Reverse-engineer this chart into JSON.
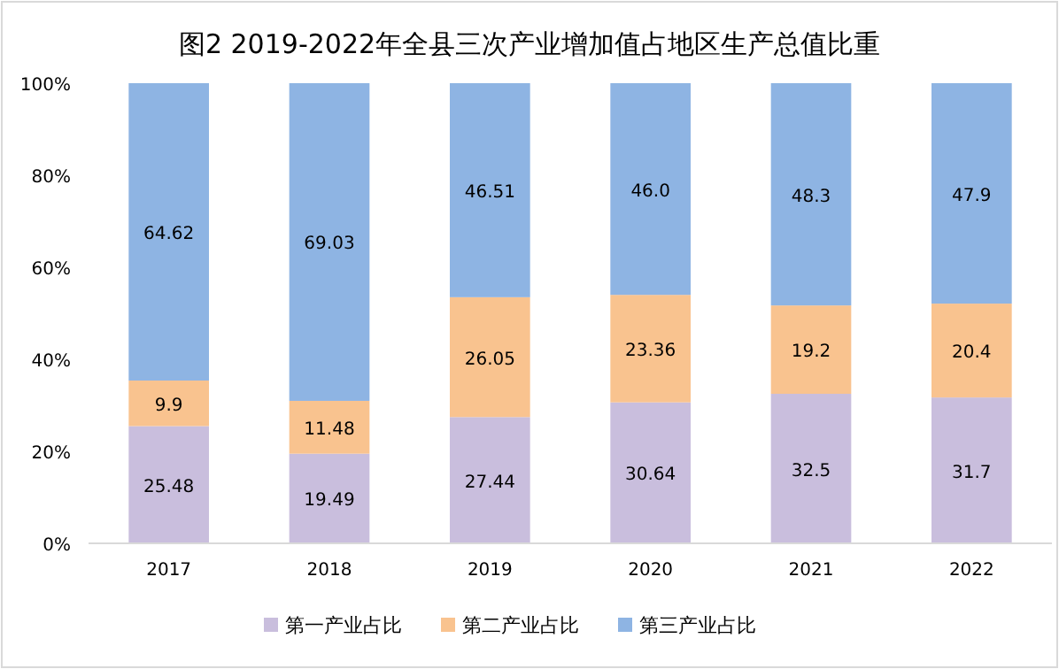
{
  "chart_data": {
    "type": "bar",
    "stacked": true,
    "title": "图2 2019-2022年全县三次产业增加值占地区生产总值比重",
    "categories": [
      "2017",
      "2018",
      "2019",
      "2020",
      "2021",
      "2022"
    ],
    "series": [
      {
        "name": "第一产业占比",
        "color": "#c9bedd",
        "values": [
          25.48,
          19.49,
          27.44,
          30.64,
          32.5,
          31.7
        ]
      },
      {
        "name": "第二产业占比",
        "color": "#f9c38f",
        "values": [
          9.9,
          11.48,
          26.05,
          23.36,
          19.2,
          20.4
        ]
      },
      {
        "name": "第三产业占比",
        "color": "#8eb4e3",
        "values": [
          64.62,
          69.03,
          46.51,
          46.0,
          48.3,
          47.9
        ]
      }
    ],
    "value_labels": [
      [
        "25.48",
        "19.49",
        "27.44",
        "30.64",
        "32.5",
        "31.7"
      ],
      [
        "9.9",
        "11.48",
        "26.05",
        "23.36",
        "19.2",
        "20.4"
      ],
      [
        "64.62",
        "69.03",
        "46.51",
        "46.0",
        "48.3",
        "47.9"
      ]
    ],
    "ylim": [
      0,
      100
    ],
    "yticks": [
      {
        "value": 0,
        "label": "0%"
      },
      {
        "value": 20,
        "label": "20%"
      },
      {
        "value": 40,
        "label": "40%"
      },
      {
        "value": 60,
        "label": "60%"
      },
      {
        "value": 80,
        "label": "80%"
      },
      {
        "value": 100,
        "label": "100%"
      }
    ],
    "grid": false,
    "legend": "bottom"
  }
}
